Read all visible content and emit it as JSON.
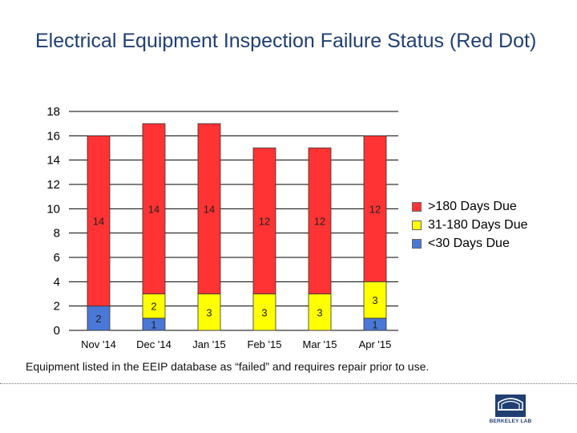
{
  "slide": {
    "title": "Electrical Equipment Inspection Failure Status (Red Dot)",
    "note": "Equipment listed in the EEIP database as “failed” and requires repair prior to use.",
    "logo_text": "BERKELEY LAB"
  },
  "chart_data": {
    "type": "bar",
    "stacked": true,
    "title": "",
    "xlabel": "",
    "ylabel": "",
    "ylim": [
      0,
      18
    ],
    "yticks": [
      0,
      2,
      4,
      6,
      8,
      10,
      12,
      14,
      16,
      18
    ],
    "grid": true,
    "legend_position": "right",
    "categories": [
      "Nov '14",
      "Dec '14",
      "Jan '15",
      "Feb '15",
      "Mar '15",
      "Apr '15"
    ],
    "series": [
      {
        "name": "<30 Days Due",
        "color": "#4a78d6",
        "values": [
          2,
          1,
          0,
          0,
          0,
          1
        ]
      },
      {
        "name": "31-180 Days Due",
        "color": "#ffff00",
        "values": [
          0,
          2,
          3,
          3,
          3,
          3
        ]
      },
      {
        "name": ">180 Days Due",
        "color": "#ff3333",
        "values": [
          14,
          14,
          14,
          12,
          12,
          12
        ]
      }
    ],
    "legend_order": [
      2,
      1,
      0
    ]
  }
}
